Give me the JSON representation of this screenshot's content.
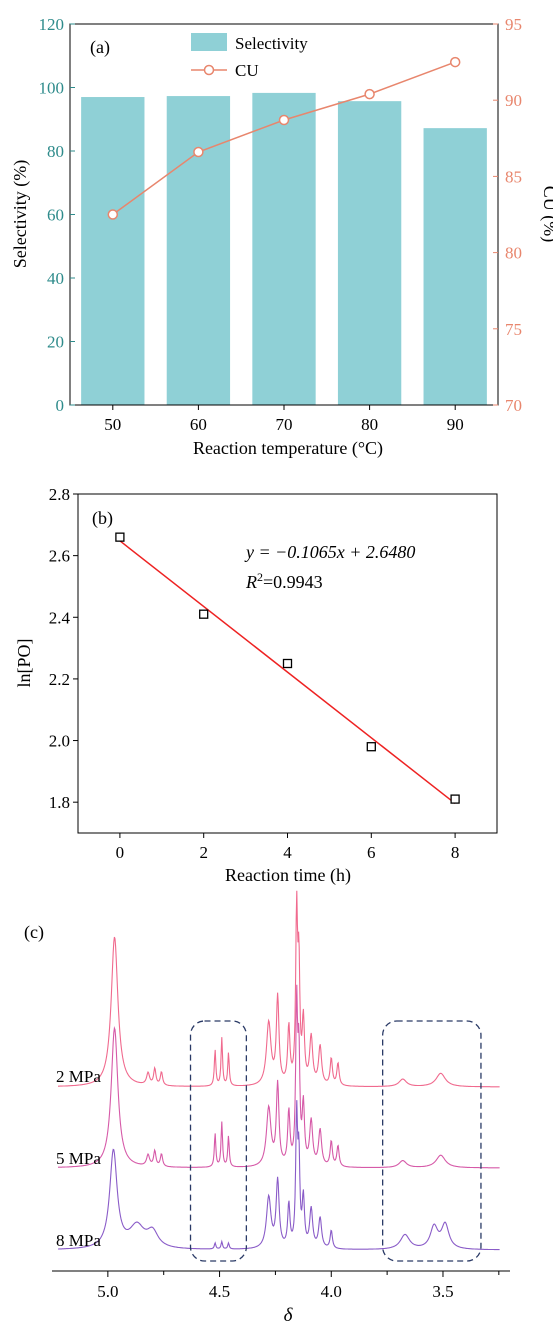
{
  "chart_data": [
    {
      "panel": "(a)",
      "type": "bar+line",
      "xlabel": "Reaction temperature (°C)",
      "ylabel_left": "Selectivity (%)",
      "ylabel_right": "CU (%)",
      "categories": [
        "50",
        "60",
        "70",
        "80",
        "90"
      ],
      "series": [
        {
          "name": "Selectivity",
          "type": "bar",
          "axis": "left",
          "values": [
            97,
            97.3,
            98.3,
            95.7,
            87.2
          ]
        },
        {
          "name": "CU",
          "type": "line",
          "axis": "right",
          "values": [
            82.5,
            86.6,
            88.7,
            90.4,
            92.5
          ]
        }
      ],
      "ylim_left": [
        0,
        120
      ],
      "ylim_right": [
        70,
        95
      ],
      "yticks_left": [
        "0",
        "20",
        "40",
        "60",
        "80",
        "100",
        "120"
      ],
      "yticks_right": [
        "70",
        "75",
        "80",
        "85",
        "90",
        "95"
      ],
      "legend_position": "top-center",
      "colors": {
        "bar": "#8fd0d6",
        "line": "#e8866d",
        "left_axis": "#2e8b8b",
        "right_axis": "#e8866d"
      }
    },
    {
      "panel": "(b)",
      "type": "scatter",
      "xlabel": "Reaction time (h)",
      "ylabel": "ln[PO]",
      "x": [
        0,
        2,
        4,
        6,
        8
      ],
      "y": [
        2.66,
        2.41,
        2.25,
        1.98,
        1.81
      ],
      "fit": {
        "slope": -0.1065,
        "intercept": 2.648,
        "equation": "y = −0.1065x + 2.6480",
        "r2_prefix": "R",
        "r2_sup": "2",
        "r2_value": "=0.9943"
      },
      "xlim": [
        -1,
        9
      ],
      "ylim": [
        1.7,
        2.8
      ],
      "xticks": [
        "0",
        "2",
        "4",
        "6",
        "8"
      ],
      "yticks": [
        "1.8",
        "2.0",
        "2.2",
        "2.4",
        "2.6",
        "2.8"
      ],
      "colors": {
        "fit": "#ee2222",
        "marker": "#000000"
      }
    },
    {
      "panel": "(c)",
      "type": "line",
      "xlabel": "δ",
      "xlim": [
        5.25,
        3.2
      ],
      "xticks": [
        "5.0",
        "4.5",
        "4.0",
        "3.5"
      ],
      "series": [
        {
          "name": "2 MPa",
          "color": "#f06a8e"
        },
        {
          "name": "5 MPa",
          "color": "#d65aa8"
        },
        {
          "name": "8 MPa",
          "color": "#8a5cc8"
        }
      ],
      "highlight_regions": [
        [
          4.63,
          4.38
        ],
        [
          3.77,
          3.33
        ]
      ],
      "colors": {
        "box": "#2a3a66"
      }
    }
  ]
}
